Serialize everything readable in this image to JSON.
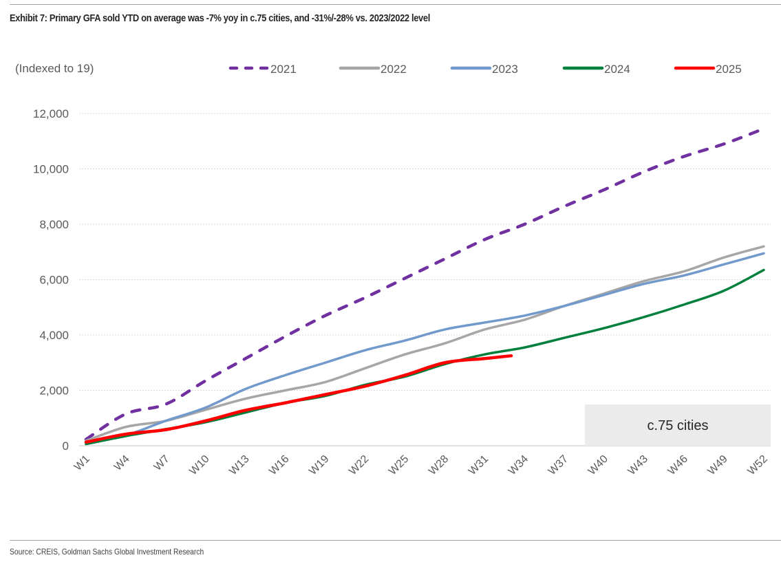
{
  "header": {
    "title": "Exhibit 7: Primary GFA sold YTD on average was -7% yoy in c.75 cities, and -31%/-28% vs. 2023/2022 level"
  },
  "footer": {
    "source": "Source: CREIS, Goldman Sachs Global Investment Research"
  },
  "chart_data": {
    "type": "line",
    "title": "Exhibit 7: Primary GFA sold YTD on average was -7% yoy in c.75 cities, and -31%/-28% vs. 2023/2022 level",
    "ylabel": "(Indexed to 19)",
    "xlabel": "",
    "ylim": [
      0,
      12000
    ],
    "yticks": [
      0,
      2000,
      4000,
      6000,
      8000,
      10000,
      12000
    ],
    "ytick_labels": [
      "0",
      "2,000",
      "4,000",
      "6,000",
      "8,000",
      "10,000",
      "12,000"
    ],
    "x_range": [
      1,
      52
    ],
    "xtick_weeks": [
      1,
      4,
      7,
      10,
      13,
      16,
      19,
      22,
      25,
      28,
      31,
      34,
      37,
      40,
      43,
      46,
      49,
      52
    ],
    "xtick_labels": [
      "W1",
      "W4",
      "W7",
      "W10",
      "W13",
      "W16",
      "W19",
      "W22",
      "W25",
      "W28",
      "W31",
      "W34",
      "W37",
      "W40",
      "W43",
      "W46",
      "W49",
      "W52"
    ],
    "grid": "horizontal-dotted",
    "legend_position": "top",
    "annotation": "c.75 cities",
    "series": [
      {
        "name": "2021",
        "color": "#7030a0",
        "style": "dashed",
        "x": [
          1,
          4,
          7,
          10,
          13,
          16,
          19,
          22,
          25,
          28,
          31,
          34,
          37,
          40,
          43,
          46,
          49,
          52
        ],
        "values": [
          230,
          1150,
          1500,
          2350,
          3150,
          3950,
          4700,
          5350,
          6050,
          6750,
          7450,
          8000,
          8650,
          9250,
          9900,
          10450,
          10900,
          11450
        ]
      },
      {
        "name": "2022",
        "color": "#a6a6a6",
        "style": "solid",
        "x": [
          1,
          4,
          7,
          10,
          13,
          16,
          19,
          22,
          25,
          28,
          31,
          34,
          37,
          40,
          43,
          46,
          49,
          52
        ],
        "values": [
          180,
          680,
          900,
          1300,
          1700,
          2000,
          2300,
          2800,
          3300,
          3700,
          4200,
          4550,
          5050,
          5500,
          5950,
          6300,
          6800,
          7200
        ]
      },
      {
        "name": "2023",
        "color": "#7199cb",
        "style": "solid",
        "x": [
          1,
          4,
          7,
          10,
          13,
          16,
          19,
          22,
          25,
          28,
          31,
          34,
          37,
          40,
          43,
          46,
          49,
          52
        ],
        "values": [
          120,
          380,
          900,
          1380,
          2050,
          2550,
          3000,
          3450,
          3800,
          4200,
          4450,
          4700,
          5050,
          5450,
          5850,
          6150,
          6550,
          6950
        ]
      },
      {
        "name": "2024",
        "color": "#00803c",
        "style": "solid",
        "x": [
          1,
          4,
          7,
          10,
          13,
          16,
          19,
          22,
          25,
          28,
          31,
          34,
          37,
          40,
          43,
          46,
          49,
          52
        ],
        "values": [
          60,
          350,
          600,
          850,
          1200,
          1550,
          1800,
          2200,
          2500,
          2950,
          3300,
          3550,
          3900,
          4250,
          4650,
          5100,
          5600,
          6350
        ]
      },
      {
        "name": "2025",
        "color": "#ff0000",
        "style": "solid",
        "x": [
          1,
          4,
          7,
          10,
          13,
          16,
          19,
          22,
          25,
          28,
          31,
          33
        ],
        "values": [
          130,
          420,
          580,
          900,
          1280,
          1550,
          1850,
          2150,
          2550,
          3000,
          3150,
          3250
        ]
      }
    ]
  }
}
